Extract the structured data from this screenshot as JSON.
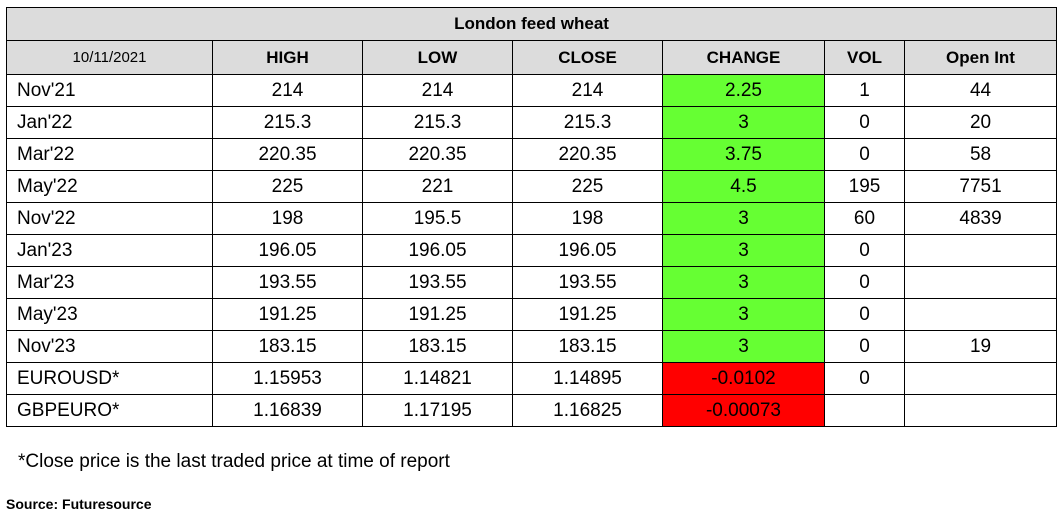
{
  "title": "London feed wheat",
  "date": "10/11/2021",
  "columns": [
    "HIGH",
    "LOW",
    "CLOSE",
    "CHANGE",
    "VOL",
    "Open Int"
  ],
  "rows": [
    {
      "name": "Nov'21",
      "high": "214",
      "low": "214",
      "close": "214",
      "change": "2.25",
      "vol": "1",
      "oi": "44",
      "dir": "up"
    },
    {
      "name": "Jan'22",
      "high": "215.3",
      "low": "215.3",
      "close": "215.3",
      "change": "3",
      "vol": "0",
      "oi": "20",
      "dir": "up"
    },
    {
      "name": "Mar'22",
      "high": "220.35",
      "low": "220.35",
      "close": "220.35",
      "change": "3.75",
      "vol": "0",
      "oi": "58",
      "dir": "up"
    },
    {
      "name": "May'22",
      "high": "225",
      "low": "221",
      "close": "225",
      "change": "4.5",
      "vol": "195",
      "oi": "7751",
      "dir": "up"
    },
    {
      "name": "Nov'22",
      "high": "198",
      "low": "195.5",
      "close": "198",
      "change": "3",
      "vol": "60",
      "oi": "4839",
      "dir": "up"
    },
    {
      "name": "Jan'23",
      "high": "196.05",
      "low": "196.05",
      "close": "196.05",
      "change": "3",
      "vol": "0",
      "oi": "",
      "dir": "up"
    },
    {
      "name": "Mar'23",
      "high": "193.55",
      "low": "193.55",
      "close": "193.55",
      "change": "3",
      "vol": "0",
      "oi": "",
      "dir": "up"
    },
    {
      "name": "May'23",
      "high": "191.25",
      "low": "191.25",
      "close": "191.25",
      "change": "3",
      "vol": "0",
      "oi": "",
      "dir": "up"
    },
    {
      "name": "Nov'23",
      "high": "183.15",
      "low": "183.15",
      "close": "183.15",
      "change": "3",
      "vol": "0",
      "oi": "19",
      "dir": "up"
    },
    {
      "name": "EUROUSD*",
      "high": "1.15953",
      "low": "1.14821",
      "close": "1.14895",
      "change": "-0.0102",
      "vol": "0",
      "oi": "",
      "dir": "down"
    },
    {
      "name": "GBPEURO*",
      "high": "1.16839",
      "low": "1.17195",
      "close": "1.16825",
      "change": "-0.00073",
      "vol": "",
      "oi": "",
      "dir": "down"
    }
  ],
  "colors": {
    "up": "#66ff33",
    "down": "#ff0000",
    "header_bg": "#dcdcdc"
  },
  "note": "*Close price is the last traded price at time of report",
  "source": "Source: Futuresource"
}
